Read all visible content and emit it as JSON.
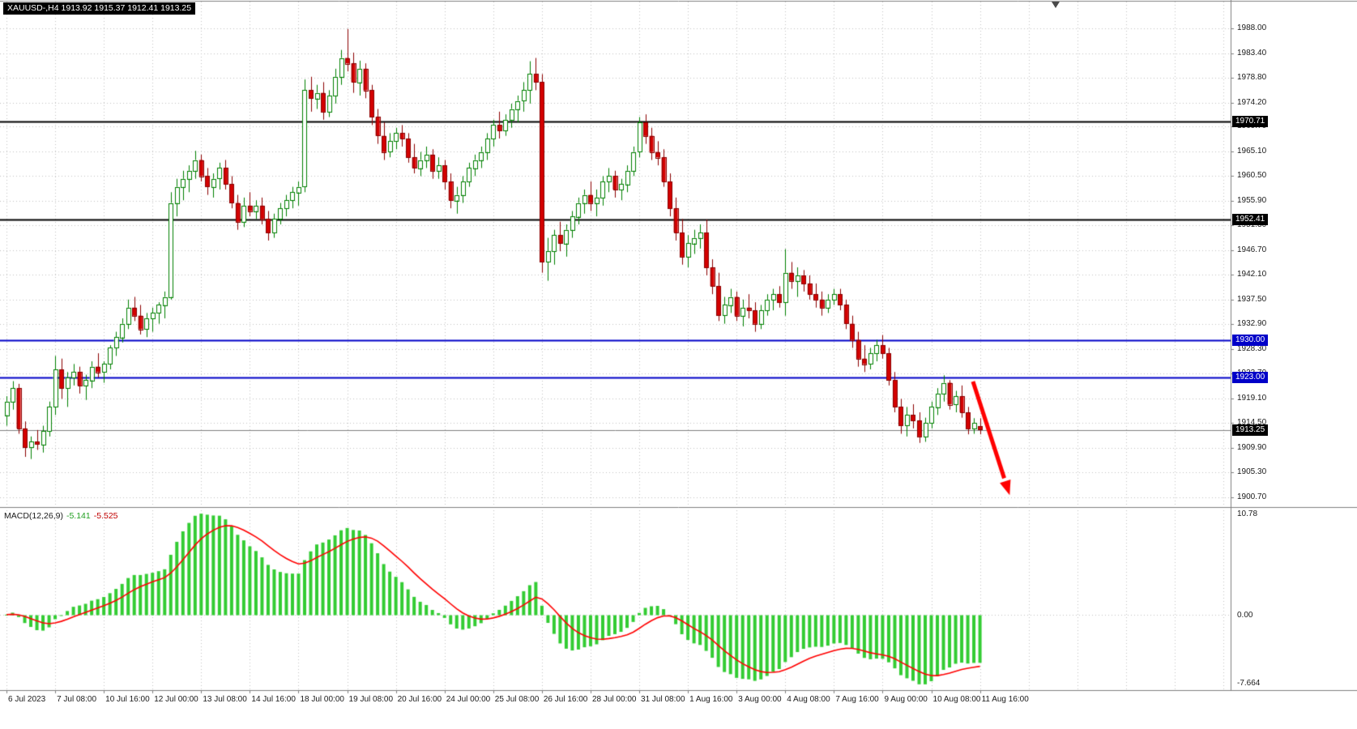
{
  "symbol_info": {
    "text": "XAUUSD-,H4 1913.92 1915.37 1912.41 1913.25"
  },
  "indicator_label": {
    "name": "MACD(12,26,9)",
    "macd_value": "-5.141",
    "signal_value": "-5.525"
  },
  "colors": {
    "background": "#FFFFFF",
    "grid": "#C4C4C4",
    "bull_fill": "#FFFFFF",
    "bull_border": "#008000",
    "bear_fill": "#D40000",
    "bear_border": "#8B0000",
    "hline_black": "#000000",
    "hline_blue": "#0000C8",
    "bid_line": "#808080",
    "macd_hist": "#33CC33",
    "macd_signal": "#FF0000",
    "arrow": "#FF0000",
    "axis_text": "#1A1A1A",
    "frame": "#808080"
  },
  "chart_data": {
    "type": "candlestick",
    "symbol": "XAUUSD-",
    "timeframe": "H4",
    "ohlc": {
      "open": 1913.92,
      "high": 1915.37,
      "low": 1912.41,
      "close": 1913.25
    },
    "y_ticks": [
      "1988.00",
      "1983.40",
      "1978.80",
      "1974.20",
      "1969.70",
      "1965.10",
      "1960.50",
      "1955.90",
      "1951.30",
      "1946.70",
      "1942.10",
      "1937.50",
      "1932.90",
      "1928.30",
      "1923.70",
      "1919.10",
      "1914.50",
      "1909.90",
      "1905.30",
      "1900.70"
    ],
    "y_range": [
      1899.0,
      1993.0
    ],
    "x_labels": [
      "6 Jul 2023",
      "7 Jul 08:00",
      "10 Jul 16:00",
      "12 Jul 00:00",
      "13 Jul 08:00",
      "14 Jul 16:00",
      "18 Jul 00:00",
      "19 Jul 08:00",
      "20 Jul 16:00",
      "24 Jul 00:00",
      "25 Jul 08:00",
      "26 Jul 16:00",
      "28 Jul 00:00",
      "31 Jul 08:00",
      "1 Aug 16:00",
      "3 Aug 00:00",
      "4 Aug 08:00",
      "7 Aug 16:00",
      "9 Aug 00:00",
      "10 Aug 08:00",
      "11 Aug 16:00"
    ],
    "bars_per_label": 8,
    "candles": [
      [
        1916.0,
        1919.5,
        1914.0,
        1918.5
      ],
      [
        1918.5,
        1922.3,
        1917.0,
        1921.0
      ],
      [
        1921.0,
        1921.8,
        1912.5,
        1913.5
      ],
      [
        1913.5,
        1914.8,
        1908.2,
        1910.0
      ],
      [
        1910.0,
        1912.0,
        1907.8,
        1911.0
      ],
      [
        1911.0,
        1913.2,
        1909.5,
        1910.5
      ],
      [
        1910.5,
        1914.0,
        1909.0,
        1913.0
      ],
      [
        1913.0,
        1918.5,
        1912.0,
        1917.5
      ],
      [
        1917.5,
        1927.0,
        1916.0,
        1924.5
      ],
      [
        1924.5,
        1926.5,
        1919.0,
        1921.0
      ],
      [
        1921.0,
        1924.0,
        1917.5,
        1923.0
      ],
      [
        1923.0,
        1925.5,
        1921.5,
        1924.0
      ],
      [
        1924.0,
        1925.0,
        1920.0,
        1921.5
      ],
      [
        1921.5,
        1923.5,
        1918.8,
        1922.5
      ],
      [
        1922.5,
        1926.0,
        1921.0,
        1925.0
      ],
      [
        1925.0,
        1927.5,
        1923.0,
        1924.0
      ],
      [
        1924.0,
        1926.0,
        1922.0,
        1925.5
      ],
      [
        1925.5,
        1929.0,
        1924.5,
        1928.5
      ],
      [
        1928.5,
        1931.5,
        1927.0,
        1930.5
      ],
      [
        1930.5,
        1934.0,
        1929.5,
        1933.0
      ],
      [
        1933.0,
        1937.5,
        1932.0,
        1936.0
      ],
      [
        1936.0,
        1938.0,
        1933.5,
        1934.5
      ],
      [
        1934.5,
        1936.5,
        1931.0,
        1932.0
      ],
      [
        1932.0,
        1935.0,
        1930.5,
        1934.0
      ],
      [
        1934.0,
        1936.0,
        1931.5,
        1935.0
      ],
      [
        1935.0,
        1937.0,
        1933.0,
        1936.5
      ],
      [
        1936.5,
        1939.0,
        1934.0,
        1938.0
      ],
      [
        1938.0,
        1957.5,
        1937.5,
        1955.5
      ],
      [
        1955.5,
        1960.0,
        1953.0,
        1958.5
      ],
      [
        1958.5,
        1961.5,
        1956.0,
        1960.0
      ],
      [
        1960.0,
        1962.5,
        1957.5,
        1961.5
      ],
      [
        1961.5,
        1965.2,
        1960.0,
        1963.5
      ],
      [
        1963.5,
        1964.5,
        1959.5,
        1960.5
      ],
      [
        1960.5,
        1962.0,
        1957.0,
        1958.5
      ],
      [
        1958.5,
        1961.0,
        1956.5,
        1960.0
      ],
      [
        1960.0,
        1963.0,
        1958.0,
        1962.0
      ],
      [
        1962.0,
        1963.5,
        1958.0,
        1959.0
      ],
      [
        1959.0,
        1960.5,
        1954.5,
        1955.5
      ],
      [
        1955.5,
        1957.0,
        1950.5,
        1952.0
      ],
      [
        1952.0,
        1956.5,
        1951.0,
        1955.0
      ],
      [
        1955.0,
        1957.5,
        1953.0,
        1954.0
      ],
      [
        1954.0,
        1956.0,
        1952.5,
        1955.0
      ],
      [
        1955.0,
        1956.5,
        1951.5,
        1952.5
      ],
      [
        1952.5,
        1954.0,
        1948.5,
        1950.0
      ],
      [
        1950.0,
        1953.5,
        1949.0,
        1952.5
      ],
      [
        1952.5,
        1955.5,
        1951.5,
        1954.5
      ],
      [
        1954.5,
        1957.0,
        1953.0,
        1956.0
      ],
      [
        1956.0,
        1958.5,
        1954.5,
        1957.5
      ],
      [
        1957.5,
        1959.5,
        1955.0,
        1958.5
      ],
      [
        1958.5,
        1978.5,
        1957.5,
        1976.5
      ],
      [
        1976.5,
        1979.0,
        1972.5,
        1975.0
      ],
      [
        1975.0,
        1977.5,
        1973.0,
        1976.0
      ],
      [
        1976.0,
        1978.0,
        1971.0,
        1972.5
      ],
      [
        1972.5,
        1976.5,
        1971.5,
        1975.5
      ],
      [
        1975.5,
        1980.5,
        1974.0,
        1979.0
      ],
      [
        1979.0,
        1984.0,
        1977.5,
        1982.5
      ],
      [
        1982.5,
        1987.9,
        1980.0,
        1981.5
      ],
      [
        1981.5,
        1983.5,
        1976.0,
        1978.0
      ],
      [
        1978.0,
        1982.0,
        1975.5,
        1980.5
      ],
      [
        1980.5,
        1981.5,
        1975.0,
        1976.5
      ],
      [
        1976.5,
        1977.5,
        1970.0,
        1971.5
      ],
      [
        1971.5,
        1973.0,
        1966.5,
        1968.0
      ],
      [
        1968.0,
        1970.5,
        1963.5,
        1965.0
      ],
      [
        1965.0,
        1968.5,
        1964.0,
        1967.0
      ],
      [
        1967.0,
        1969.5,
        1965.5,
        1968.5
      ],
      [
        1968.5,
        1970.0,
        1966.0,
        1967.5
      ],
      [
        1967.5,
        1968.5,
        1963.0,
        1964.0
      ],
      [
        1964.0,
        1966.5,
        1961.0,
        1962.0
      ],
      [
        1962.0,
        1965.0,
        1960.5,
        1963.5
      ],
      [
        1963.5,
        1966.0,
        1962.0,
        1964.5
      ],
      [
        1964.5,
        1965.5,
        1960.0,
        1961.5
      ],
      [
        1961.5,
        1964.0,
        1960.0,
        1962.5
      ],
      [
        1962.5,
        1963.5,
        1958.0,
        1959.5
      ],
      [
        1959.5,
        1961.0,
        1954.5,
        1956.0
      ],
      [
        1956.0,
        1958.5,
        1953.5,
        1957.0
      ],
      [
        1957.0,
        1960.5,
        1955.5,
        1959.5
      ],
      [
        1959.5,
        1963.0,
        1958.5,
        1962.0
      ],
      [
        1962.0,
        1964.5,
        1960.5,
        1963.5
      ],
      [
        1963.5,
        1966.0,
        1962.0,
        1965.0
      ],
      [
        1965.0,
        1968.5,
        1963.5,
        1967.5
      ],
      [
        1967.5,
        1971.0,
        1966.0,
        1970.0
      ],
      [
        1970.0,
        1972.5,
        1967.5,
        1969.0
      ],
      [
        1969.0,
        1972.0,
        1968.0,
        1971.0
      ],
      [
        1971.0,
        1974.0,
        1969.5,
        1973.0
      ],
      [
        1973.0,
        1975.5,
        1970.5,
        1974.5
      ],
      [
        1974.5,
        1978.0,
        1972.5,
        1976.5
      ],
      [
        1976.5,
        1981.9,
        1974.0,
        1979.5
      ],
      [
        1979.5,
        1982.5,
        1976.5,
        1978.0
      ],
      [
        1978.0,
        1979.5,
        1942.5,
        1944.5
      ],
      [
        1944.5,
        1949.0,
        1941.0,
        1946.5
      ],
      [
        1946.5,
        1950.5,
        1944.0,
        1949.5
      ],
      [
        1949.5,
        1952.0,
        1946.5,
        1948.0
      ],
      [
        1948.0,
        1951.5,
        1945.5,
        1950.5
      ],
      [
        1950.5,
        1954.0,
        1949.0,
        1953.0
      ],
      [
        1953.0,
        1956.5,
        1951.5,
        1955.5
      ],
      [
        1955.5,
        1958.0,
        1953.5,
        1957.0
      ],
      [
        1957.0,
        1959.5,
        1954.0,
        1955.5
      ],
      [
        1955.5,
        1958.0,
        1953.0,
        1956.5
      ],
      [
        1956.5,
        1960.5,
        1955.0,
        1959.5
      ],
      [
        1959.5,
        1962.0,
        1957.5,
        1960.5
      ],
      [
        1960.5,
        1961.5,
        1956.5,
        1958.0
      ],
      [
        1958.0,
        1960.0,
        1956.0,
        1959.0
      ],
      [
        1959.0,
        1962.5,
        1957.5,
        1961.5
      ],
      [
        1961.5,
        1966.0,
        1960.5,
        1965.0
      ],
      [
        1965.0,
        1971.5,
        1964.0,
        1970.5
      ],
      [
        1970.5,
        1972.0,
        1966.5,
        1968.0
      ],
      [
        1968.0,
        1969.5,
        1963.5,
        1965.0
      ],
      [
        1965.0,
        1967.0,
        1962.5,
        1964.0
      ],
      [
        1964.0,
        1965.5,
        1958.5,
        1959.5
      ],
      [
        1959.5,
        1961.0,
        1953.0,
        1954.5
      ],
      [
        1954.5,
        1956.5,
        1948.5,
        1950.0
      ],
      [
        1950.0,
        1952.5,
        1944.0,
        1945.5
      ],
      [
        1945.5,
        1949.5,
        1943.5,
        1948.0
      ],
      [
        1948.0,
        1950.5,
        1946.0,
        1949.0
      ],
      [
        1949.0,
        1951.5,
        1947.0,
        1950.0
      ],
      [
        1950.0,
        1952.4,
        1942.0,
        1943.5
      ],
      [
        1943.5,
        1945.0,
        1938.5,
        1940.0
      ],
      [
        1940.0,
        1942.5,
        1933.5,
        1934.5
      ],
      [
        1934.5,
        1938.0,
        1933.0,
        1936.5
      ],
      [
        1936.5,
        1939.5,
        1935.0,
        1938.0
      ],
      [
        1938.0,
        1939.0,
        1933.5,
        1934.5
      ],
      [
        1934.5,
        1937.5,
        1932.5,
        1936.0
      ],
      [
        1936.0,
        1938.5,
        1934.0,
        1935.5
      ],
      [
        1935.5,
        1937.0,
        1931.5,
        1933.0
      ],
      [
        1933.0,
        1936.5,
        1932.0,
        1935.5
      ],
      [
        1935.5,
        1938.5,
        1934.5,
        1937.5
      ],
      [
        1937.5,
        1939.5,
        1935.5,
        1938.5
      ],
      [
        1938.5,
        1940.0,
        1936.0,
        1937.0
      ],
      [
        1937.0,
        1946.9,
        1934.5,
        1942.5
      ],
      [
        1942.5,
        1944.5,
        1939.5,
        1941.0
      ],
      [
        1941.0,
        1943.5,
        1938.0,
        1942.0
      ],
      [
        1942.0,
        1943.0,
        1939.0,
        1940.5
      ],
      [
        1940.5,
        1942.0,
        1937.5,
        1938.5
      ],
      [
        1938.5,
        1940.5,
        1936.0,
        1937.5
      ],
      [
        1937.5,
        1939.0,
        1934.5,
        1936.0
      ],
      [
        1936.0,
        1938.5,
        1935.0,
        1937.5
      ],
      [
        1937.5,
        1939.5,
        1936.5,
        1938.5
      ],
      [
        1938.5,
        1939.5,
        1935.5,
        1936.5
      ],
      [
        1936.5,
        1937.5,
        1932.0,
        1933.0
      ],
      [
        1933.0,
        1934.5,
        1928.5,
        1930.0
      ],
      [
        1930.0,
        1931.5,
        1925.0,
        1926.5
      ],
      [
        1926.5,
        1929.0,
        1924.0,
        1925.5
      ],
      [
        1925.5,
        1928.5,
        1924.5,
        1927.5
      ],
      [
        1927.5,
        1930.0,
        1926.0,
        1929.0
      ],
      [
        1929.0,
        1930.9,
        1926.5,
        1927.5
      ],
      [
        1927.5,
        1928.5,
        1921.5,
        1922.5
      ],
      [
        1922.5,
        1924.0,
        1916.5,
        1917.5
      ],
      [
        1917.5,
        1919.0,
        1912.5,
        1914.0
      ],
      [
        1914.0,
        1917.5,
        1912.0,
        1916.0
      ],
      [
        1916.0,
        1918.0,
        1913.5,
        1915.0
      ],
      [
        1915.0,
        1916.5,
        1910.8,
        1912.0
      ],
      [
        1912.0,
        1915.5,
        1911.0,
        1914.5
      ],
      [
        1914.5,
        1918.5,
        1913.5,
        1917.5
      ],
      [
        1917.5,
        1921.0,
        1916.0,
        1920.0
      ],
      [
        1920.0,
        1923.4,
        1918.5,
        1922.0
      ],
      [
        1922.0,
        1922.5,
        1917.0,
        1918.0
      ],
      [
        1918.0,
        1920.5,
        1916.5,
        1919.5
      ],
      [
        1919.5,
        1921.5,
        1915.5,
        1916.5
      ],
      [
        1916.5,
        1917.5,
        1912.4,
        1913.5
      ],
      [
        1913.5,
        1915.4,
        1912.5,
        1914.5
      ],
      [
        1913.9,
        1915.4,
        1912.4,
        1913.3
      ]
    ],
    "hlines": [
      {
        "price": 1970.71,
        "color": "#000000",
        "width": 2
      },
      {
        "price": 1952.41,
        "color": "#000000",
        "width": 2
      },
      {
        "price": 1930.0,
        "color": "#0000C8",
        "width": 2
      },
      {
        "price": 1923.0,
        "color": "#0000C8",
        "width": 2
      }
    ],
    "bid_line": {
      "price": 1913.25
    },
    "badges": [
      {
        "text": "1970.71",
        "bg": "#000000",
        "price": 1970.71
      },
      {
        "text": "1952.41",
        "bg": "#000000",
        "price": 1952.41
      },
      {
        "text": "1930.00",
        "bg": "#0000C8",
        "price": 1930.0
      },
      {
        "text": "1923.00",
        "bg": "#0000C8",
        "price": 1923.0
      },
      {
        "text": "1913.25",
        "bg": "#000000",
        "price": 1913.25
      }
    ],
    "macd": {
      "fast": 12,
      "slow": 26,
      "signal": 9,
      "macd_value": -5.141,
      "signal_value": -5.525,
      "axis_ticks": [
        "10.78",
        "0.00",
        "-7.664"
      ]
    },
    "annotation_arrow": {
      "type": "arrow-down",
      "color": "#FF0000"
    }
  }
}
